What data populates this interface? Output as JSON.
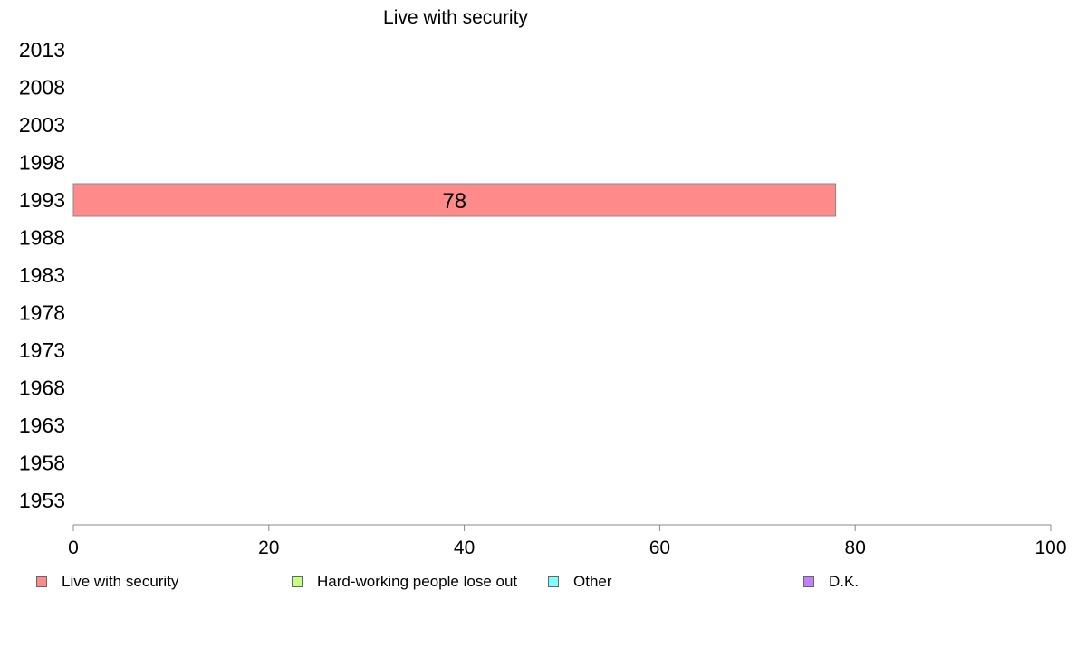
{
  "chart_data": {
    "type": "bar",
    "orientation": "horizontal",
    "title": "Live with security",
    "categories": [
      "2013",
      "2008",
      "2003",
      "1998",
      "1993",
      "1988",
      "1983",
      "1978",
      "1973",
      "1968",
      "1963",
      "1958",
      "1953"
    ],
    "series": [
      {
        "name": "Live with security",
        "color": "#ff8a8a",
        "values": [
          null,
          null,
          null,
          null,
          78,
          null,
          null,
          null,
          null,
          null,
          null,
          null,
          null
        ],
        "labels": [
          "",
          "",
          "",
          "",
          "78",
          "",
          "",
          "",
          "",
          "",
          "",
          "",
          ""
        ]
      }
    ],
    "x_ticks": [
      "0",
      "20",
      "40",
      "60",
      "80",
      "100"
    ],
    "xlim": [
      0,
      100
    ],
    "grid": false,
    "legend_position": "bottom"
  },
  "legend": [
    {
      "label": "Live with security",
      "color": "#ff8a8a"
    },
    {
      "label": "Hard-working people lose out",
      "color": "#c5ff80"
    },
    {
      "label": "Other",
      "color": "#80ffff"
    },
    {
      "label": "D.K.",
      "color": "#c080ff"
    }
  ]
}
